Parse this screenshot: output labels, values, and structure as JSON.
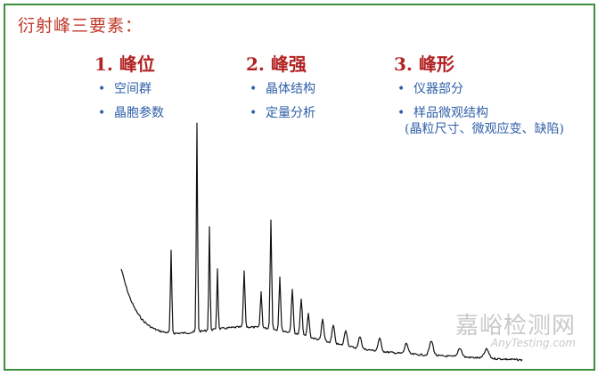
{
  "title": "衍射峰三要素：",
  "columns": [
    {
      "heading": "1. 峰位",
      "bullets": [
        "空间群",
        "晶胞参数"
      ]
    },
    {
      "heading": "2. 峰强",
      "bullets": [
        "晶体结构",
        "定量分析"
      ]
    },
    {
      "heading": "3. 峰形",
      "bullets": [
        "仪器部分",
        "样品微观结构"
      ],
      "bullet_note": "(晶粒尺寸、微观应变、缺陷)"
    }
  ],
  "watermark": {
    "cn": "嘉峪检测网",
    "en": "AnyTesting.com"
  },
  "colors": {
    "title": "#c0392b",
    "heading": "#b22222",
    "bullet": "#2e5fa8",
    "border": "#3f8f3f",
    "trace": "#111111"
  }
}
